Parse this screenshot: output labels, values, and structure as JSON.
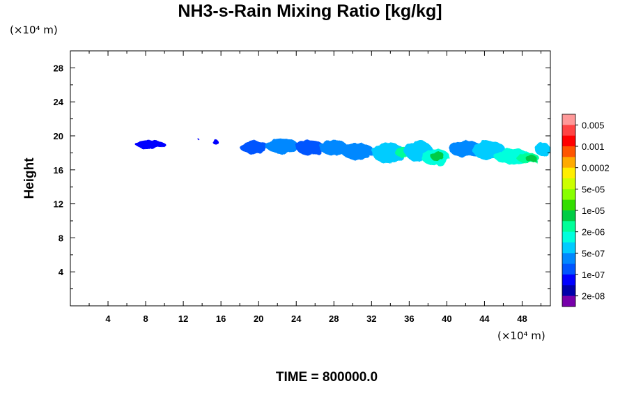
{
  "chart_data": {
    "type": "heatmap",
    "title": "NH3-s-Rain Mixing Ratio [kg/kg]",
    "xlabel": "",
    "ylabel": "Height",
    "x_unit": "(×10⁴ m)",
    "y_unit": "(×10⁴ m)",
    "xlim": [
      0,
      51
    ],
    "ylim": [
      0,
      30
    ],
    "xticks": [
      4,
      8,
      12,
      16,
      20,
      24,
      28,
      32,
      36,
      40,
      44,
      48
    ],
    "yticks": [
      4,
      8,
      12,
      16,
      20,
      24,
      28
    ],
    "colorbar": {
      "colors": [
        "#ff9999",
        "#ff4444",
        "#ff0000",
        "#ff5500",
        "#ffaa00",
        "#ffee00",
        "#ccff00",
        "#88ff00",
        "#33dd00",
        "#00cc44",
        "#00ff99",
        "#00ffdd",
        "#00ccff",
        "#0088ff",
        "#0055ff",
        "#0000ff",
        "#0000aa",
        "#7700aa"
      ],
      "labels": [
        "0.005",
        "0.001",
        "0.0002",
        "5e-05",
        "1e-05",
        "2e-06",
        "5e-07",
        "1e-07",
        "2e-08"
      ]
    },
    "cloud_patches": [
      {
        "x": 8.5,
        "y": 19.0,
        "w": 3.2,
        "h": 1.0,
        "level": 15
      },
      {
        "x": 13.6,
        "y": 19.6,
        "w": 0.15,
        "h": 0.15,
        "level": 15
      },
      {
        "x": 15.4,
        "y": 19.3,
        "w": 0.6,
        "h": 0.6,
        "level": 15
      },
      {
        "x": 19.5,
        "y": 18.7,
        "w": 3.0,
        "h": 1.6,
        "level": 14
      },
      {
        "x": 22.5,
        "y": 18.8,
        "w": 3.5,
        "h": 1.8,
        "level": 13
      },
      {
        "x": 25.5,
        "y": 18.6,
        "w": 3.0,
        "h": 1.8,
        "level": 14
      },
      {
        "x": 28.0,
        "y": 18.6,
        "w": 3.0,
        "h": 1.8,
        "level": 13
      },
      {
        "x": 30.5,
        "y": 18.2,
        "w": 3.5,
        "h": 2.0,
        "level": 13
      },
      {
        "x": 33.8,
        "y": 18.0,
        "w": 3.5,
        "h": 2.4,
        "level": 12
      },
      {
        "x": 35.2,
        "y": 18.1,
        "w": 1.4,
        "h": 1.2,
        "level": 10
      },
      {
        "x": 37.0,
        "y": 18.2,
        "w": 3.0,
        "h": 2.4,
        "level": 12
      },
      {
        "x": 38.8,
        "y": 17.5,
        "w": 3.0,
        "h": 2.0,
        "level": 11
      },
      {
        "x": 39.0,
        "y": 17.6,
        "w": 1.4,
        "h": 1.2,
        "level": 9
      },
      {
        "x": 42.0,
        "y": 18.5,
        "w": 3.6,
        "h": 1.9,
        "level": 13
      },
      {
        "x": 44.5,
        "y": 18.3,
        "w": 3.5,
        "h": 2.2,
        "level": 12
      },
      {
        "x": 47.0,
        "y": 17.6,
        "w": 4.0,
        "h": 1.8,
        "level": 11
      },
      {
        "x": 48.6,
        "y": 17.4,
        "w": 2.4,
        "h": 1.2,
        "level": 10
      },
      {
        "x": 49.0,
        "y": 17.3,
        "w": 1.2,
        "h": 0.8,
        "level": 9
      },
      {
        "x": 50.2,
        "y": 18.4,
        "w": 1.6,
        "h": 1.6,
        "level": 12
      }
    ]
  },
  "footer": {
    "time_label": "TIME = 800000.0"
  }
}
